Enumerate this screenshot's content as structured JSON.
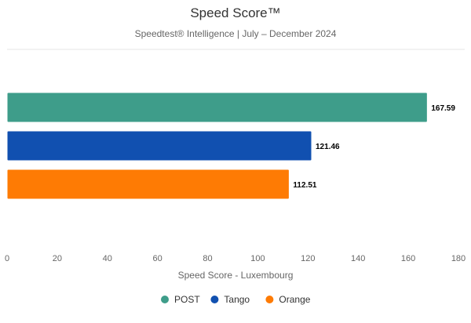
{
  "chart_data": {
    "type": "bar",
    "orientation": "horizontal",
    "title": "Speed Score™",
    "subtitle": "Speedtest® Intelligence | July – December 2024",
    "xlabel": "Speed Score - Luxembourg",
    "ylabel": "",
    "xlim": [
      0,
      180
    ],
    "x_ticks": [
      0,
      20,
      40,
      60,
      80,
      100,
      120,
      140,
      160,
      180
    ],
    "grid": false,
    "legend_position": "bottom-center",
    "series": [
      {
        "name": "POST",
        "value": 167.59,
        "value_label": "167.59",
        "color": "#3e9d8a"
      },
      {
        "name": "Tango",
        "value": 121.46,
        "value_label": "121.46",
        "color": "#1150b0"
      },
      {
        "name": "Orange",
        "value": 112.51,
        "value_label": "112.51",
        "color": "#fe7b04"
      }
    ]
  }
}
